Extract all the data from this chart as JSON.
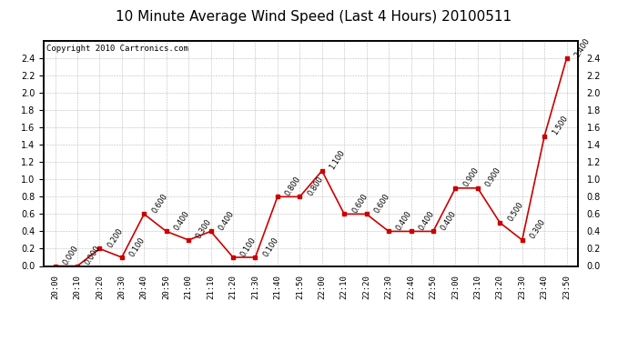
{
  "title": "10 Minute Average Wind Speed (Last 4 Hours) 20100511",
  "copyright": "Copyright 2010 Cartronics.com",
  "times": [
    "20:00",
    "20:10",
    "20:20",
    "20:30",
    "20:40",
    "20:50",
    "21:00",
    "21:10",
    "21:20",
    "21:30",
    "21:40",
    "21:50",
    "22:00",
    "22:10",
    "22:20",
    "22:30",
    "22:40",
    "22:50",
    "23:00",
    "23:10",
    "23:20",
    "23:30",
    "23:40",
    "23:50"
  ],
  "values": [
    0.0,
    0.0,
    0.2,
    0.1,
    0.6,
    0.4,
    0.3,
    0.4,
    0.1,
    0.1,
    0.8,
    0.8,
    1.1,
    0.6,
    0.6,
    0.4,
    0.4,
    0.4,
    0.9,
    0.9,
    0.5,
    0.3,
    1.5,
    2.4
  ],
  "line_color": "#cc0000",
  "marker": "s",
  "marker_size": 3,
  "ylim": [
    0.0,
    2.6
  ],
  "yticks": [
    0.0,
    0.2,
    0.4,
    0.6,
    0.8,
    1.0,
    1.2,
    1.4,
    1.6,
    1.8,
    2.0,
    2.2,
    2.4
  ],
  "bg_color": "#ffffff",
  "grid_color": "#bbbbbb",
  "title_fontsize": 11,
  "xtick_fontsize": 6.5,
  "ytick_fontsize": 7,
  "annotation_fontsize": 6,
  "copyright_fontsize": 6.5
}
